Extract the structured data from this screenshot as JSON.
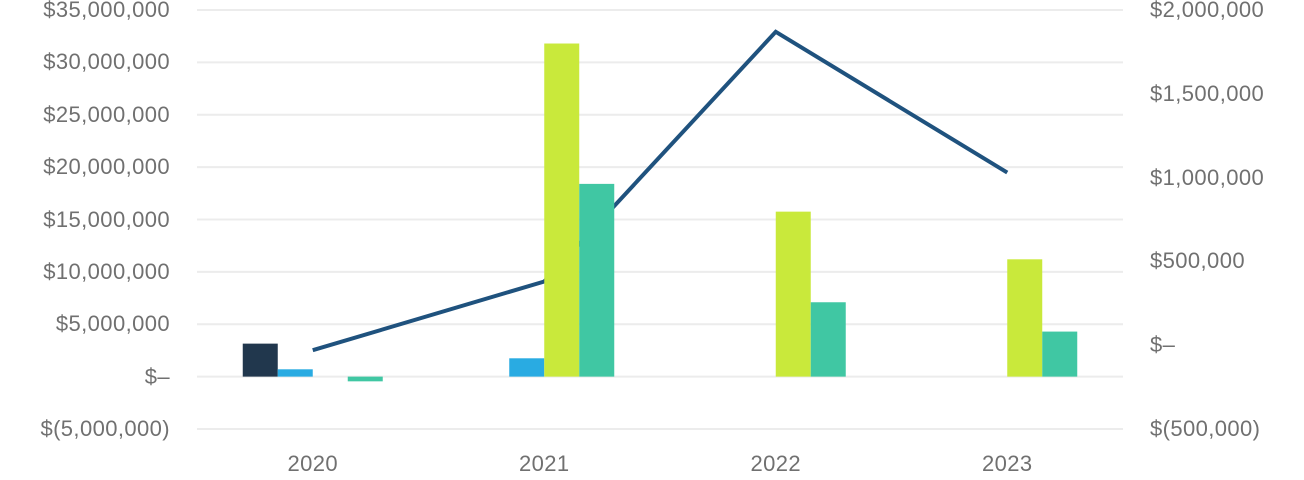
{
  "chart_data": {
    "type": "bar",
    "subtype": "grouped-bar-with-line-combo",
    "title": "",
    "xlabel": "",
    "ylabel": "",
    "legend": "none",
    "grid": "horizontal",
    "background_color": "#FFFFFF",
    "gridline_color": "#ECECEC",
    "label_color": "#707070",
    "categories": [
      "2020",
      "2021",
      "2022",
      "2023"
    ],
    "bar_series": [
      {
        "name": "navy-bars",
        "color": "#21374D",
        "axis": "left",
        "values": [
          3150000,
          0,
          0,
          0
        ]
      },
      {
        "name": "blue-bars",
        "color": "#29ABE2",
        "axis": "left",
        "values": [
          700000,
          1750000,
          0,
          0
        ]
      },
      {
        "name": "lime-bars",
        "color": "#C9E93B",
        "axis": "left",
        "values": [
          0,
          31800000,
          15750000,
          11200000
        ]
      },
      {
        "name": "teal-bars",
        "color": "#40C7A3",
        "axis": "left",
        "values": [
          -450000,
          18400000,
          7100000,
          4300000
        ]
      }
    ],
    "line_series": {
      "name": "navy-line",
      "color": "#1F527E",
      "axis": "right",
      "stroke_width": 4,
      "values": [
        -30000,
        380000,
        1870000,
        1030000
      ]
    },
    "left_axis": {
      "max": 35000000,
      "min": -5000000,
      "step": 5000000,
      "tick_labels": [
        "$35,000,000",
        "$30,000,000",
        "$25,000,000",
        "$20,000,000",
        "$15,000,000",
        "$10,000,000",
        "$5,000,000",
        "$–",
        "$(5,000,000)"
      ]
    },
    "right_axis": {
      "max": 2000000,
      "min": -500000,
      "step": 500000,
      "tick_labels": [
        "$2,000,000",
        "$1,500,000",
        "$1,000,000",
        "$500,000",
        "$–",
        "$(500,000)"
      ]
    }
  }
}
